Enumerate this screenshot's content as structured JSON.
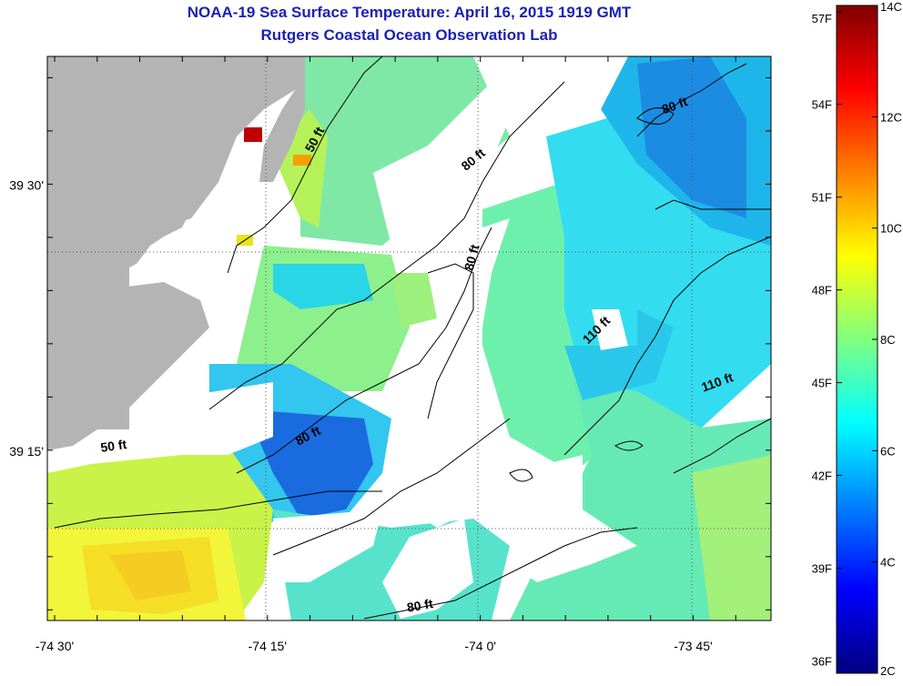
{
  "header": {
    "title": "NOAA-19 Sea Surface Temperature:  April 16, 2015 1919 GMT",
    "subtitle": "Rutgers Coastal Ocean Observation Lab"
  },
  "map": {
    "lon_range": [
      -74.5,
      -73.65
    ],
    "lat_range": [
      39.09,
      39.62
    ],
    "x_tick_labels": [
      {
        "lon": -74.5,
        "label": "-74 30'"
      },
      {
        "lon": -74.25,
        "label": "-74 15'"
      },
      {
        "lon": -74.0,
        "label": "-74 0'"
      },
      {
        "lon": -73.75,
        "label": "-73 45'"
      }
    ],
    "y_tick_labels": [
      {
        "lat": 39.5,
        "label": "39 30'"
      },
      {
        "lat": 39.25,
        "label": "39 15'"
      }
    ],
    "contour_labels": [
      {
        "text": "50 ft",
        "lon": -74.19,
        "lat": 39.54,
        "angle": -62
      },
      {
        "text": "80 ft",
        "lon": -74.005,
        "lat": 39.52,
        "angle": -40
      },
      {
        "text": "80 ft",
        "lon": -73.77,
        "lat": 39.57,
        "angle": -20
      },
      {
        "text": "80 ft",
        "lon": -74.005,
        "lat": 39.43,
        "angle": -75
      },
      {
        "text": "110 ft",
        "lon": -73.86,
        "lat": 39.36,
        "angle": -45
      },
      {
        "text": "110 ft",
        "lon": -73.72,
        "lat": 39.31,
        "angle": -20
      },
      {
        "text": "50 ft",
        "lon": -74.43,
        "lat": 39.25,
        "angle": -8
      },
      {
        "text": "80 ft",
        "lon": -74.2,
        "lat": 39.26,
        "angle": -28
      },
      {
        "text": "80 ft",
        "lon": -74.07,
        "lat": 39.1,
        "angle": -10
      }
    ],
    "colors": {
      "land": "#b4b4b4",
      "no_data": "#ffffff"
    }
  },
  "colorbar": {
    "celsius_labels": [
      "14C",
      "12C",
      "10C",
      "8C",
      "6C",
      "4C",
      "2C"
    ],
    "celsius_values": [
      14,
      12,
      10,
      8,
      6,
      4,
      2
    ],
    "fahrenheit_labels": [
      "57F",
      "54F",
      "51F",
      "48F",
      "45F",
      "42F",
      "39F",
      "36F"
    ],
    "fahrenheit_values": [
      57,
      54,
      51,
      48,
      45,
      42,
      39,
      36
    ],
    "range_c": [
      2,
      14
    ]
  }
}
